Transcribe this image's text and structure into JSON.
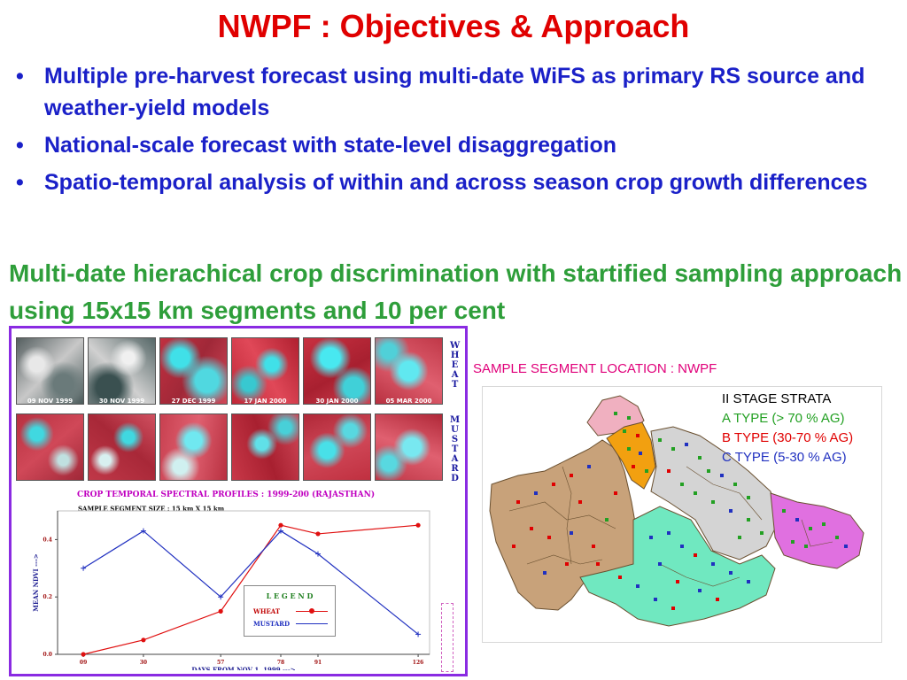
{
  "slide": {
    "title": "NWPF : Objectives & Approach",
    "bullets": [
      "Multiple pre-harvest forecast using multi-date WiFS as primary RS source and weather-yield models",
      "National-scale forecast with state-level disaggregation",
      "Spatio-temporal analysis of within and across season crop growth differences"
    ],
    "approach_text": "Multi-date hierachical crop discrimination with startified sampling approach using 15x15 km segments and 10 per cent"
  },
  "imagery": {
    "dates": [
      "09 NOV 1999",
      "30 NOV 1999",
      "27 DEC 1999",
      "17 JAN 2000",
      "30 JAN 2000",
      "05 MAR 2000"
    ],
    "side_label_wheat": "W\nH\nE\nA\nT",
    "side_label_mustard": "M\nU\nS\nT\nA\nR\nD"
  },
  "profile_chart": {
    "title": "CROP TEMPORAL SPECTRAL PROFILES : 1999-200 (RAJASTHAN)",
    "subtitle": "SAMPLE SEGMENT SIZE : 15 km X 15 km",
    "legend_title": "L E G E N D",
    "legend_wheat": "WHEAT",
    "legend_mustard": "MUSTARD"
  },
  "chart_data": {
    "type": "line",
    "title": "CROP TEMPORAL SPECTRAL PROFILES : 1999-200 (RAJASTHAN)",
    "xlabel": "DAYS FROM NOV 1, 1999 --->",
    "ylabel": "MEAN NDVI --->",
    "x": [
      9,
      30,
      57,
      78,
      91,
      126
    ],
    "x_tick_labels": [
      "09",
      "30",
      "57",
      "78",
      "91",
      "126"
    ],
    "y_tick_labels": [
      "0.0",
      "0.2",
      "0.4"
    ],
    "xlim": [
      0,
      130
    ],
    "ylim": [
      0,
      0.5
    ],
    "y_ticks": [
      0,
      0.2,
      0.4
    ],
    "grid": false,
    "legend_position": "bottom-right",
    "series": [
      {
        "name": "WHEAT",
        "color": "#e01010",
        "marker": "circle",
        "values": [
          0.0,
          0.05,
          0.15,
          0.45,
          0.42,
          0.45
        ]
      },
      {
        "name": "MUSTARD",
        "color": "#2030c0",
        "marker": "plus",
        "values": [
          0.3,
          0.43,
          0.2,
          0.43,
          0.35,
          0.07
        ]
      }
    ]
  },
  "map": {
    "title": "SAMPLE SEGMENT LOCATION : NWPF",
    "legend_heading": "II STAGE STRATA",
    "a_type": "A TYPE (> 70 % AG)",
    "b_type": "B TYPE (30-70 % AG)",
    "c_type": "C TYPE (5-30 % AG)",
    "colors": {
      "a_type": "#22a022",
      "b_type": "#e00000",
      "c_type": "#2030c0",
      "region_tan": "#c8a27a",
      "region_gray": "#d4d4d4",
      "region_mint": "#70e8c0",
      "region_magenta": "#e070e0",
      "region_orange": "#f2a010",
      "region_pink": "#f0b0c0"
    }
  },
  "colors": {
    "title": "#e00000",
    "bullets": "#1a20c8",
    "approach": "#2e9e3a",
    "panel_border": "#8a2be2"
  }
}
